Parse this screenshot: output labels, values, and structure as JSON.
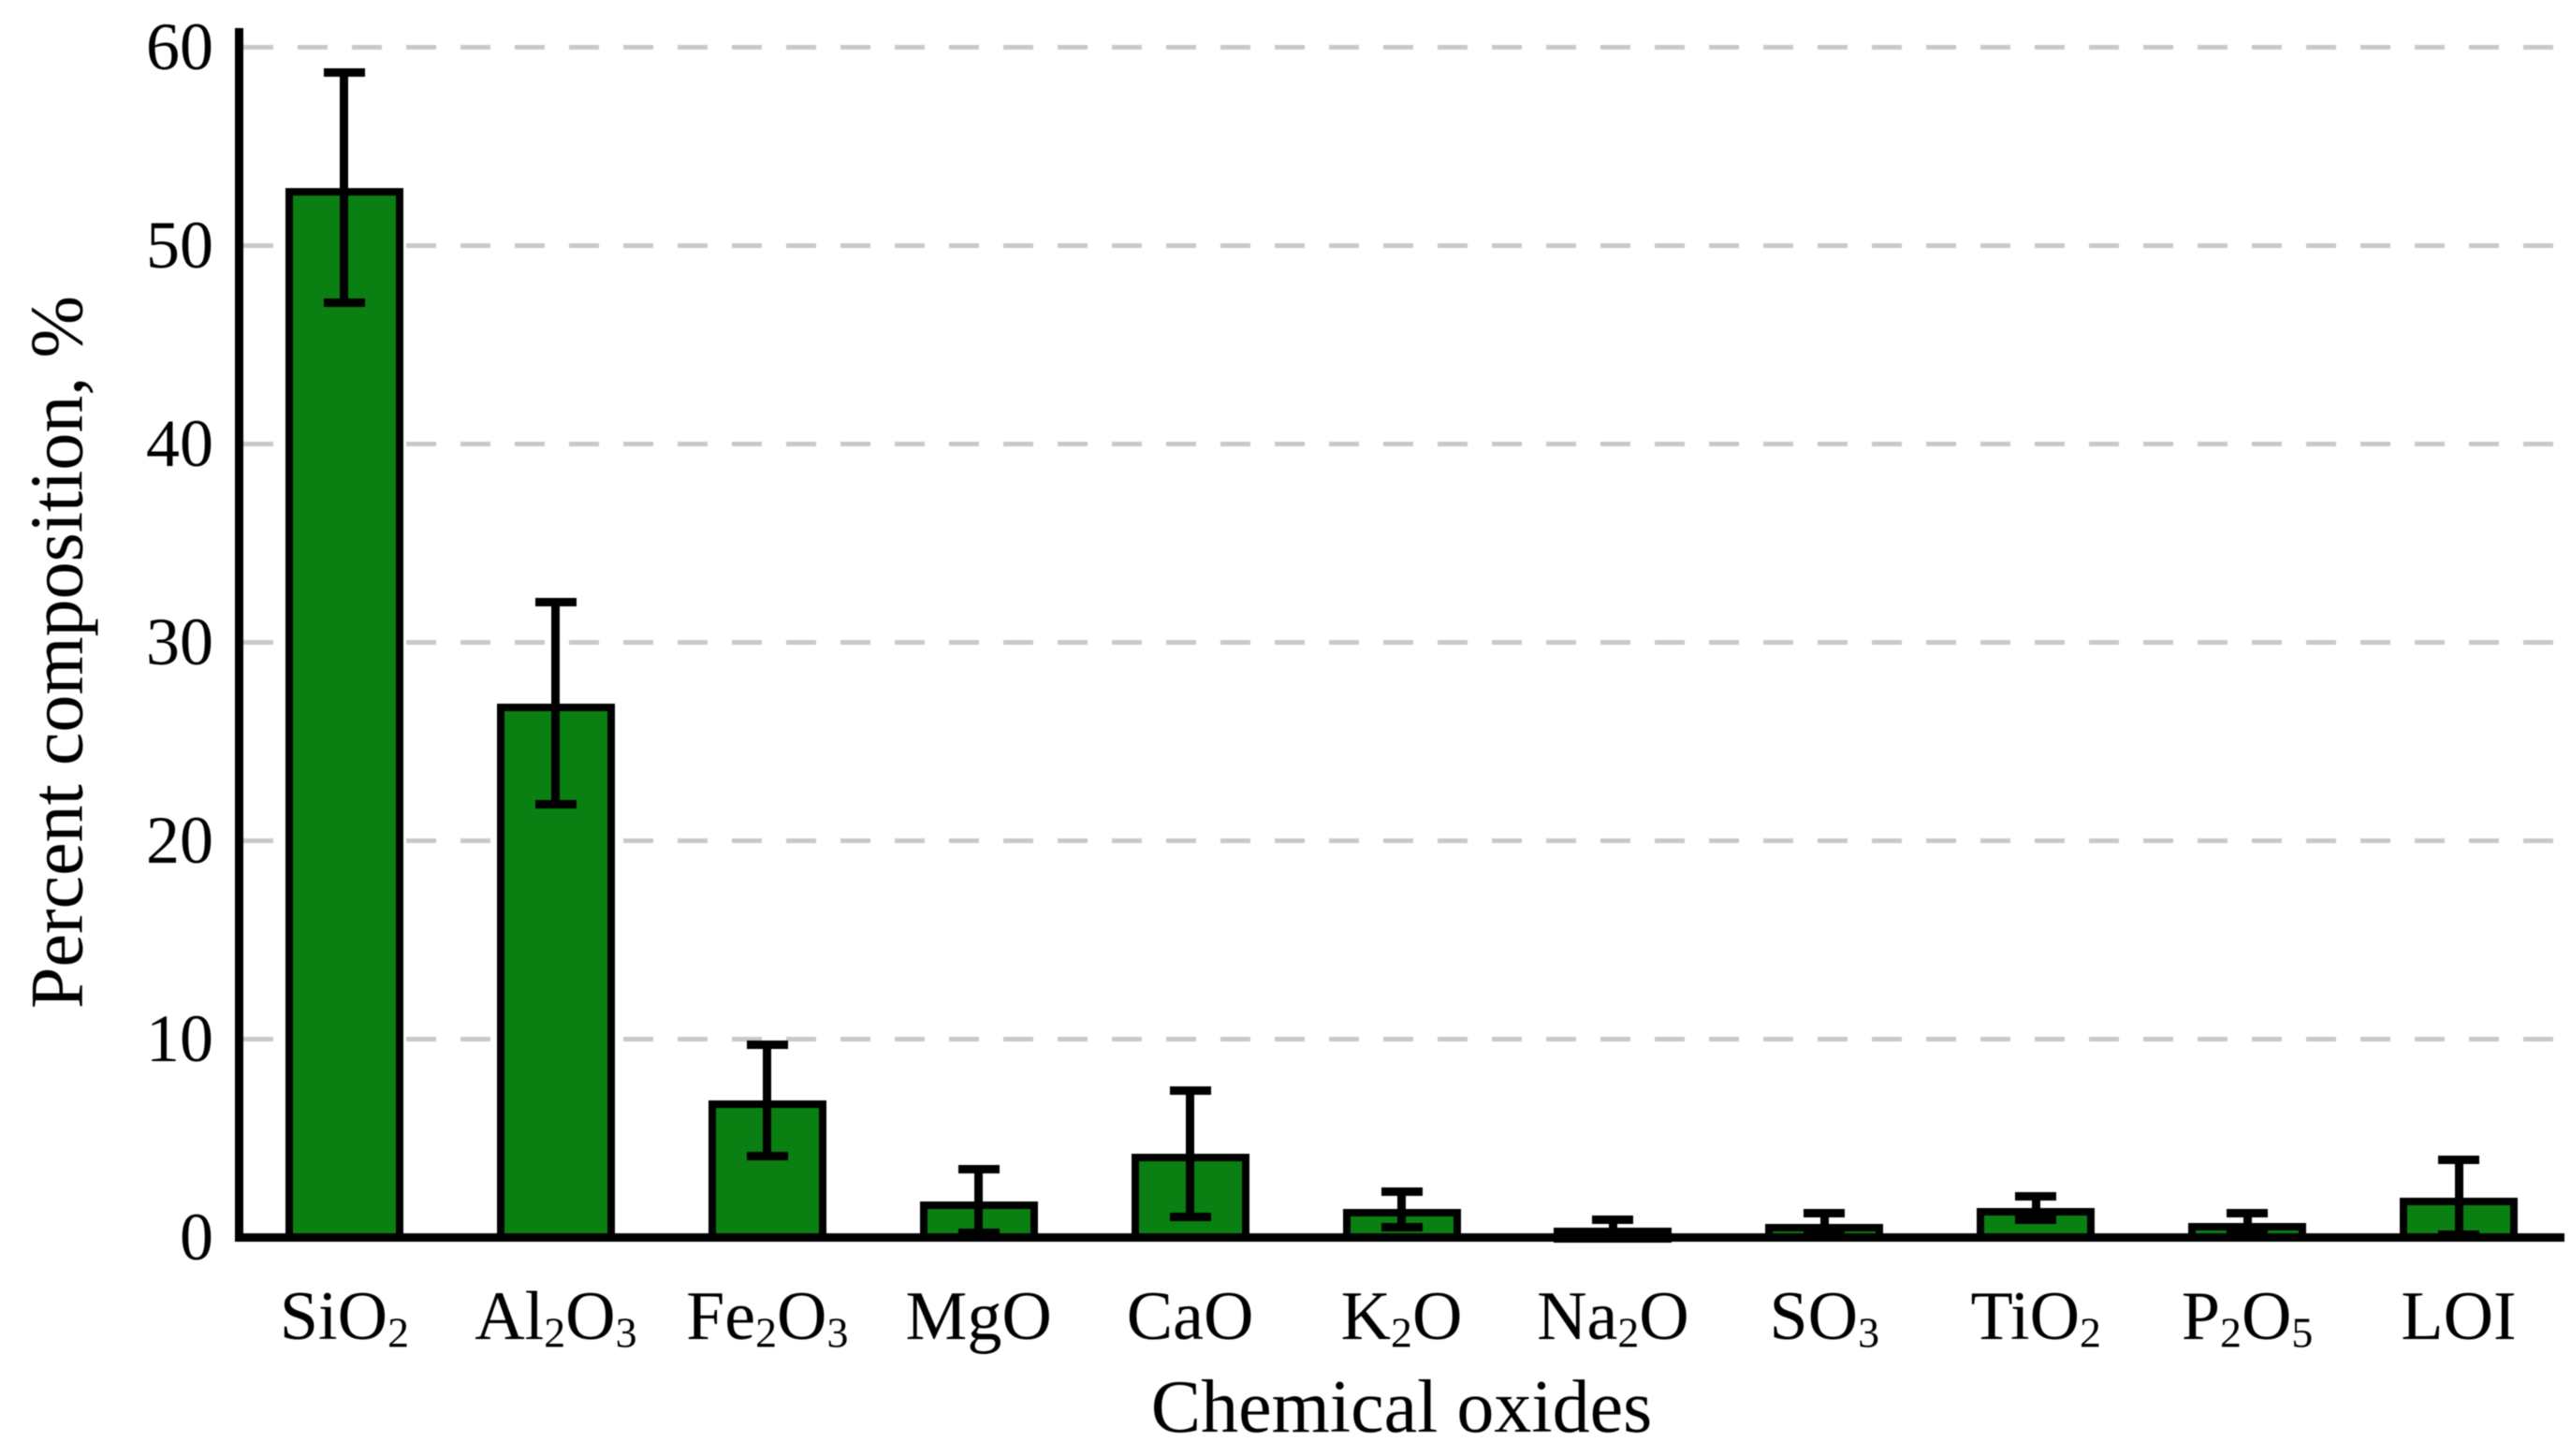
{
  "figure": {
    "background_color": "#ffffff",
    "text_color": "#000000"
  },
  "chart_data": {
    "type": "bar",
    "title": "",
    "xlabel": "Chemical oxides",
    "ylabel": "Percent composition, %",
    "categories": [
      "SiO₂",
      "Al₂O₃",
      "Fe₂O₃",
      "MgO",
      "CaO",
      "K₂O",
      "Na₂O",
      "SO₃",
      "TiO₂",
      "P₂O₅",
      "LOI"
    ],
    "category_parts": [
      [
        {
          "t": "SiO"
        },
        {
          "t": "2",
          "sub": true
        }
      ],
      [
        {
          "t": "Al"
        },
        {
          "t": "2",
          "sub": true
        },
        {
          "t": "O"
        },
        {
          "t": "3",
          "sub": true
        }
      ],
      [
        {
          "t": "Fe"
        },
        {
          "t": "2",
          "sub": true
        },
        {
          "t": "O"
        },
        {
          "t": "3",
          "sub": true
        }
      ],
      [
        {
          "t": "MgO"
        }
      ],
      [
        {
          "t": "CaO"
        }
      ],
      [
        {
          "t": "K"
        },
        {
          "t": "2",
          "sub": true
        },
        {
          "t": "O"
        }
      ],
      [
        {
          "t": "Na"
        },
        {
          "t": "2",
          "sub": true
        },
        {
          "t": "O"
        }
      ],
      [
        {
          "t": "SO"
        },
        {
          "t": "3",
          "sub": true
        }
      ],
      [
        {
          "t": "TiO"
        },
        {
          "t": "2",
          "sub": true
        }
      ],
      [
        {
          "t": "P"
        },
        {
          "t": "2",
          "sub": true
        },
        {
          "t": "O"
        },
        {
          "t": "5",
          "sub": true
        }
      ],
      [
        {
          "t": "LOI"
        }
      ]
    ],
    "values": [
      52.9,
      26.9,
      6.9,
      1.8,
      4.2,
      1.4,
      0.45,
      0.65,
      1.45,
      0.7,
      2.0
    ],
    "errors": [
      5.8,
      5.1,
      2.8,
      1.6,
      3.2,
      0.9,
      0.4,
      0.55,
      0.6,
      0.5,
      1.9
    ],
    "ylim": [
      0,
      60
    ],
    "yticks": [
      0,
      10,
      20,
      30,
      40,
      50,
      60
    ],
    "grid": "horizontal-dashed",
    "legend_position": "none",
    "bar_fill_color": "#0a7f12",
    "bar_border_color": "#000000",
    "error_bar_color": "#000000",
    "gridline_color": "#c9c9c9",
    "axis_color": "#000000"
  }
}
